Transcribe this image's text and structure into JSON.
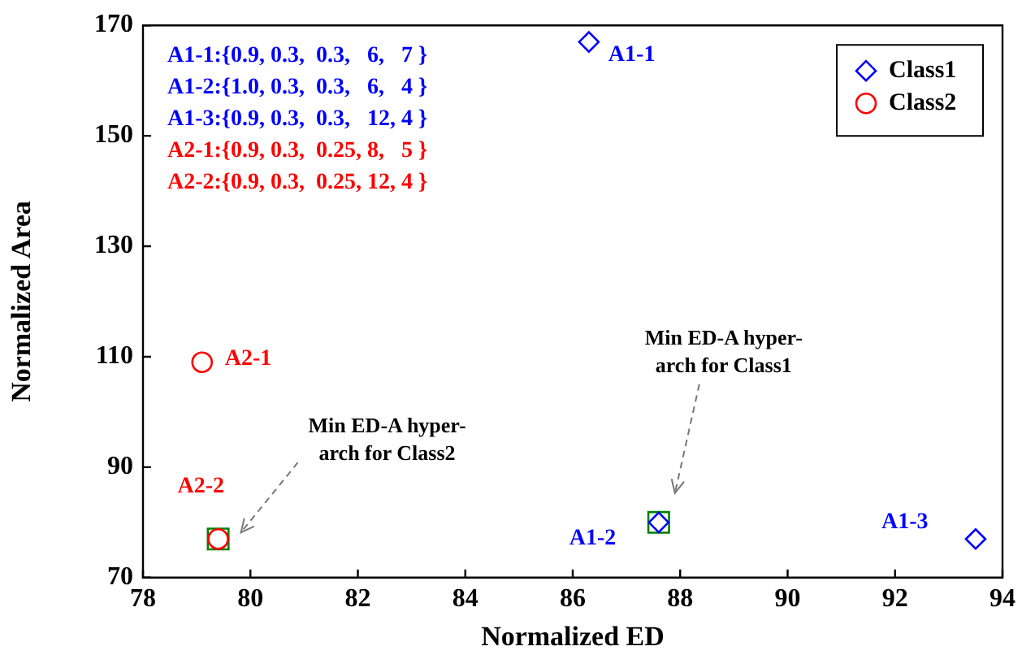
{
  "chart_data": {
    "type": "scatter",
    "xlabel": "Normalized ED",
    "ylabel": "Normalized Area",
    "xlim": [
      78,
      94
    ],
    "xticks": [
      78,
      80,
      82,
      84,
      86,
      88,
      90,
      92,
      94
    ],
    "ylim": [
      70,
      170
    ],
    "yticks": [
      70,
      90,
      110,
      130,
      150,
      170
    ],
    "grid": false,
    "legend": "top right",
    "series": [
      {
        "name": "Class1",
        "color": "#0000ff",
        "marker": "diamond",
        "x": [
          86.3,
          87.6,
          93.5
        ],
        "values": [
          167,
          80,
          77
        ]
      },
      {
        "name": "Class2",
        "color": "#ff0000",
        "marker": "circle",
        "x": [
          79.1,
          79.4
        ],
        "values": [
          109,
          77
        ]
      },
      {
        "color": "#008000",
        "marker": "square",
        "x": [
          87.6,
          79.4
        ],
        "values": [
          80,
          77
        ]
      }
    ],
    "annotations": [
      "A1-1:{0.9, 0.3,  0.3,   6,   7 }",
      "A1-2:{1.0, 0.3,  0.3,   6,   4 }",
      "A1-3:{0.9, 0.3,  0.3,   12, 4 }",
      "A2-1:{0.9, 0.3,  0.25, 8,   5 }",
      "A2-2:{0.9, 0.3,  0.25, 12, 4 }",
      {
        "text": "A1-1",
        "x": 86.3,
        "y": 167
      },
      {
        "text": "A1-2",
        "x": 87.6,
        "y": 80
      },
      {
        "text": "A1-3",
        "x": 93.5,
        "y": 77
      },
      {
        "text": "A2-1",
        "x": 79.1,
        "y": 109
      },
      {
        "text": "A2-2",
        "x": 79.4,
        "y": 77
      },
      "Min ED-A hyper-\narch for Class1",
      "Min ED-A hyper-\narch for Class2"
    ]
  }
}
